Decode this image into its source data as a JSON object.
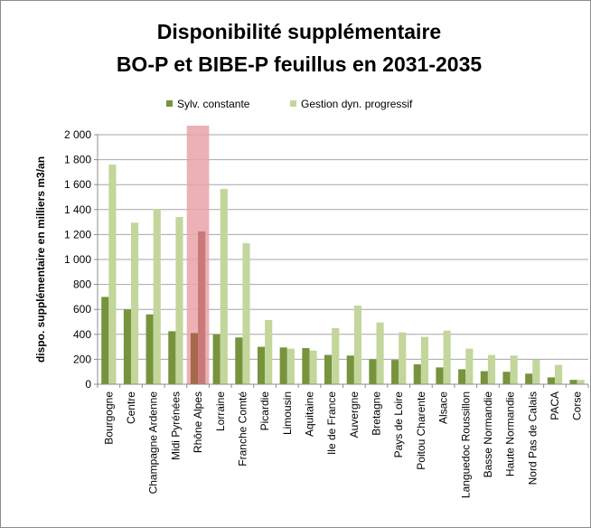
{
  "chart_data": {
    "type": "bar",
    "title_line1": "Disponibilité supplémentaire",
    "title_line2": "BO-P et BIBE-P feuillus en 2031-2035",
    "ylabel": "dispo. supplémentaire en milliers m3/an",
    "xlabel": "",
    "ylim": [
      0,
      2000
    ],
    "yticks": [
      0,
      200,
      400,
      600,
      800,
      1000,
      1200,
      1400,
      1600,
      1800,
      2000
    ],
    "ytick_labels": [
      "0",
      "200",
      "400",
      "600",
      "800",
      "1 000",
      "1 200",
      "1 400",
      "1 600",
      "1 800",
      "2 000"
    ],
    "grid": true,
    "legend_position": "top",
    "highlight_category": "Rhône Alpes",
    "highlight_color": "#e8a3a8",
    "categories": [
      "Bourgogne",
      "Centre",
      "Champagne Ardenne",
      "Midi Pyrénées",
      "Rhône Alpes",
      "Lorraine",
      "Franche Comté",
      "Picardie",
      "Limousin",
      "Aquitaine",
      "Ile de France",
      "Auvergne",
      "Bretagne",
      "Pays de Loire",
      "Poitou Charente",
      "Alsace",
      "Languedoc Roussillon",
      "Basse Normandie",
      "Haute Normandie",
      "Nord Pas de Calais",
      "PACA",
      "Corse"
    ],
    "series": [
      {
        "name": "Sylv. constante",
        "color": "#77933c",
        "values": [
          700,
          600,
          560,
          425,
          410,
          400,
          375,
          300,
          295,
          290,
          235,
          230,
          200,
          195,
          160,
          135,
          120,
          105,
          100,
          85,
          55,
          35
        ]
      },
      {
        "name": "Gestion dyn. progressif",
        "color": "#c3d69b",
        "values": [
          1760,
          1295,
          1405,
          1340,
          1225,
          1565,
          1130,
          515,
          285,
          270,
          450,
          630,
          495,
          415,
          380,
          430,
          285,
          235,
          230,
          195,
          155,
          35
        ]
      }
    ]
  }
}
